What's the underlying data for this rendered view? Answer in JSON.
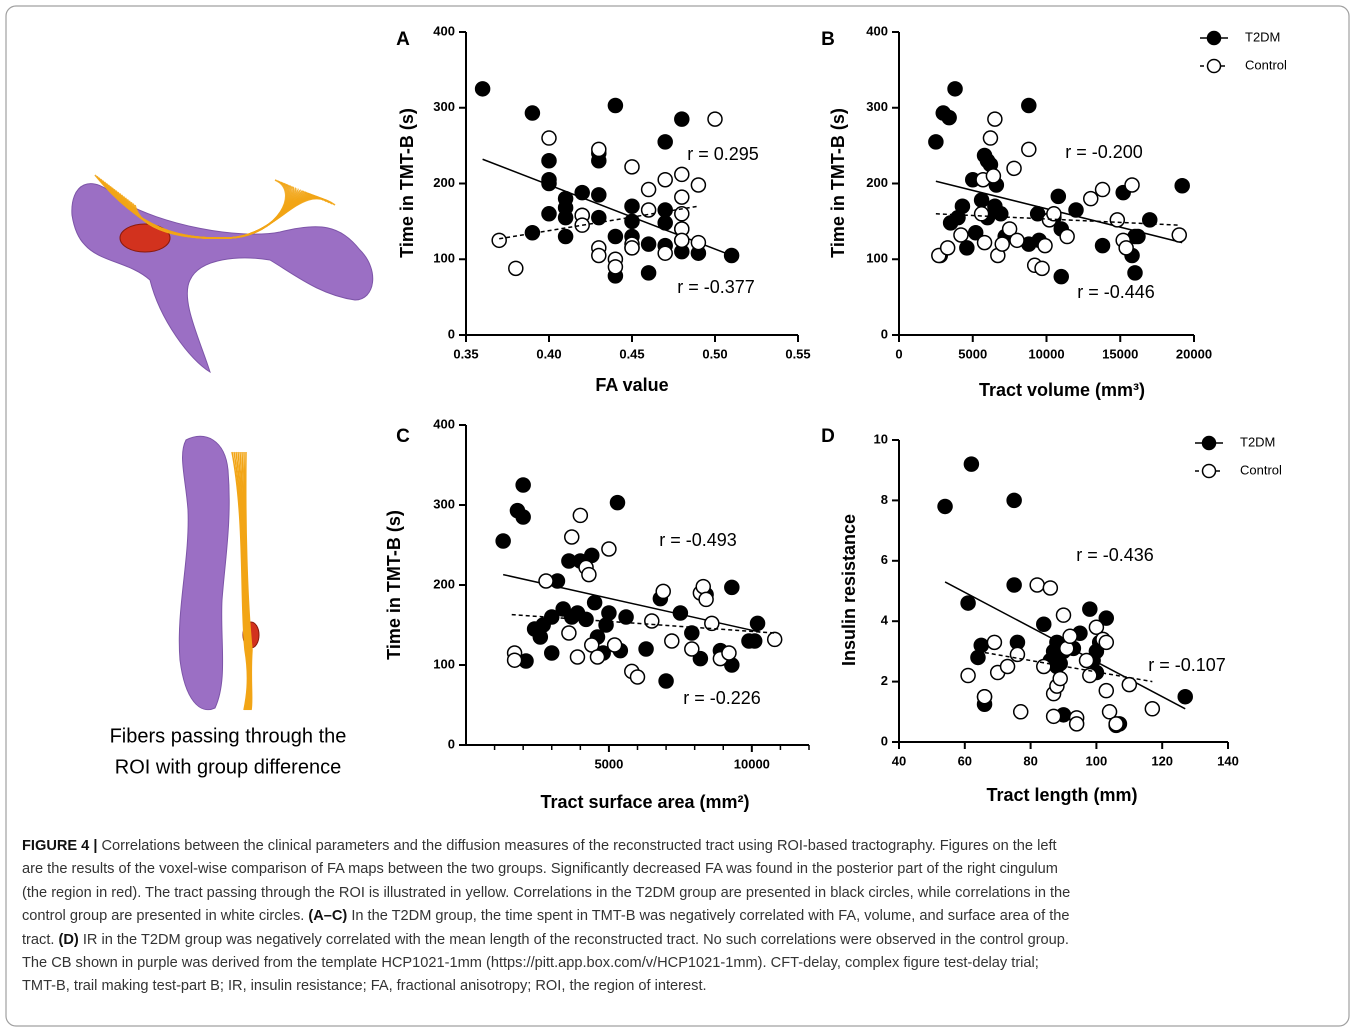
{
  "chart_data": [
    {
      "type": "scatter",
      "panel": "A",
      "x_label": "FA value",
      "y_label": "Time in TMT-B (s)",
      "xlim": [
        0.35,
        0.55
      ],
      "ylim": [
        0,
        400
      ],
      "xticks": [
        0.35,
        {
          "value": 0.4,
          "label": "0.40"
        },
        0.45,
        {
          "value": 0.5,
          "label": "0.50"
        },
        0.55
      ],
      "yticks": [
        0,
        100,
        200,
        300,
        400
      ],
      "series": [
        {
          "name": "T2DM",
          "color": "#000000",
          "line_style": "solid",
          "x": [
            0.36,
            0.39,
            0.39,
            0.4,
            0.4,
            0.4,
            0.4,
            0.41,
            0.41,
            0.41,
            0.41,
            0.42,
            0.42,
            0.43,
            0.43,
            0.43,
            0.43,
            0.44,
            0.44,
            0.44,
            0.45,
            0.45,
            0.45,
            0.45,
            0.46,
            0.46,
            0.47,
            0.47,
            0.47,
            0.47,
            0.48,
            0.48,
            0.48,
            0.48,
            0.49,
            0.51
          ],
          "values": [
            325,
            293,
            135,
            230,
            205,
            200,
            160,
            180,
            168,
            155,
            130,
            188,
            158,
            240,
            230,
            185,
            155,
            303,
            130,
            78,
            170,
            150,
            130,
            115,
            120,
            82,
            255,
            165,
            148,
            118,
            285,
            140,
            125,
            110,
            108,
            105
          ],
          "fit": {
            "x": [
              0.36,
              0.51
            ],
            "y": [
              232,
              105
            ]
          }
        },
        {
          "name": "Control",
          "color": "#ffffff",
          "line_style": "dashed",
          "x": [
            0.37,
            0.38,
            0.4,
            0.42,
            0.42,
            0.43,
            0.43,
            0.43,
            0.44,
            0.44,
            0.45,
            0.45,
            0.45,
            0.46,
            0.46,
            0.47,
            0.47,
            0.48,
            0.48,
            0.48,
            0.48,
            0.48,
            0.49,
            0.49,
            0.5
          ],
          "values": [
            125,
            88,
            260,
            158,
            145,
            245,
            115,
            105,
            100,
            90,
            222,
            120,
            115,
            192,
            165,
            205,
            108,
            212,
            182,
            160,
            140,
            125,
            198,
            122,
            285
          ],
          "fit": {
            "x": [
              0.37,
              0.49
            ],
            "y": [
              127,
              170
            ]
          }
        }
      ],
      "annotations": [
        "r = 0.295",
        "r = -0.377"
      ],
      "legend": null
    },
    {
      "type": "scatter",
      "panel": "B",
      "x_label": "Tract volume (mm³)",
      "y_label": "Time in TMT-B (s)",
      "xlim": [
        0,
        20000
      ],
      "ylim": [
        0,
        400
      ],
      "xticks": [
        0,
        5000,
        10000,
        15000,
        20000
      ],
      "yticks": [
        0,
        100,
        200,
        300,
        400
      ],
      "series": [
        {
          "name": "T2DM",
          "color": "#000000",
          "line_style": "solid",
          "x": [
            2500,
            2800,
            3000,
            3400,
            3800,
            3500,
            4000,
            4300,
            4600,
            5000,
            5200,
            5600,
            5800,
            6000,
            6000,
            6200,
            6500,
            6600,
            6900,
            7200,
            8800,
            8800,
            9400,
            9500,
            10500,
            10800,
            11000,
            11000,
            12000,
            13800,
            15200,
            15800,
            16000,
            16000,
            16200,
            17000,
            19200
          ],
          "values": [
            255,
            105,
            293,
            287,
            325,
            148,
            155,
            170,
            115,
            205,
            135,
            178,
            237,
            230,
            155,
            225,
            170,
            198,
            160,
            130,
            303,
            120,
            160,
            125,
            155,
            183,
            77,
            140,
            165,
            118,
            188,
            105,
            130,
            82,
            130,
            152,
            197
          ],
          "fit": {
            "x": [
              2500,
              19200
            ],
            "y": [
              203,
              122
            ]
          }
        },
        {
          "name": "Control",
          "color": "#ffffff",
          "line_style": "dashed",
          "x": [
            2700,
            3300,
            4200,
            5600,
            5700,
            5800,
            6200,
            6500,
            6400,
            6700,
            7000,
            7500,
            7800,
            8000,
            8800,
            9200,
            9700,
            9900,
            10200,
            10500,
            11400,
            13000,
            13800,
            14800,
            15200,
            15400,
            15800,
            19000
          ],
          "values": [
            105,
            115,
            132,
            160,
            205,
            122,
            260,
            285,
            210,
            105,
            120,
            140,
            220,
            125,
            245,
            92,
            88,
            118,
            152,
            160,
            130,
            180,
            192,
            152,
            125,
            115,
            198,
            132
          ],
          "fit": {
            "x": [
              2500,
              19000
            ],
            "y": [
              160,
              145
            ]
          }
        }
      ],
      "annotations": [
        "r = -0.200",
        "r = -0.446"
      ],
      "legend": "upper right"
    },
    {
      "type": "scatter",
      "panel": "C",
      "x_label": "Tract surface area (mm²)",
      "y_label": "Time in TMT-B (s)",
      "xlim": [
        0,
        12000
      ],
      "ylim": [
        0,
        400
      ],
      "xticks": [
        5000,
        10000
      ],
      "minor_xticks": [
        1000,
        2000,
        3000,
        4000,
        6000,
        7000,
        8000,
        9000,
        11000,
        12000
      ],
      "yticks": [
        0,
        100,
        200,
        300,
        400
      ],
      "series": [
        {
          "name": "T2DM",
          "color": "#000000",
          "line_style": "solid",
          "x": [
            1300,
            1800,
            2000,
            2000,
            2100,
            2400,
            2600,
            2700,
            3000,
            3000,
            3200,
            3400,
            3600,
            3700,
            3900,
            4000,
            4200,
            4500,
            4400,
            4600,
            4800,
            4900,
            5000,
            5300,
            5400,
            5600,
            6300,
            6800,
            7000,
            7500,
            7900,
            8200,
            8400,
            8900,
            9300,
            9300,
            9900,
            10100,
            10200
          ],
          "values": [
            255,
            293,
            285,
            325,
            105,
            145,
            135,
            150,
            160,
            115,
            205,
            170,
            230,
            160,
            165,
            230,
            157,
            178,
            237,
            135,
            115,
            150,
            165,
            303,
            118,
            160,
            120,
            183,
            80,
            165,
            140,
            108,
            188,
            118,
            100,
            197,
            130,
            130,
            152
          ],
          "fit": {
            "x": [
              1300,
              10300
            ],
            "y": [
              213,
              141
            ]
          }
        },
        {
          "name": "Control",
          "color": "#ffffff",
          "line_style": "dashed",
          "x": [
            1700,
            1700,
            2800,
            3600,
            3700,
            3900,
            4000,
            4200,
            4300,
            4400,
            4600,
            5000,
            5200,
            5800,
            6000,
            6500,
            6900,
            7200,
            7900,
            8200,
            8300,
            8400,
            8600,
            8900,
            9200,
            10800
          ],
          "values": [
            115,
            106,
            205,
            140,
            260,
            110,
            287,
            222,
            213,
            125,
            110,
            245,
            125,
            92,
            85,
            155,
            192,
            130,
            120,
            190,
            198,
            182,
            152,
            108,
            115,
            132
          ],
          "fit": {
            "x": [
              1600,
              10800
            ],
            "y": [
              163,
              140
            ]
          }
        }
      ],
      "annotations": [
        "r = -0.493",
        "r = -0.226"
      ],
      "legend": null
    },
    {
      "type": "scatter",
      "panel": "D",
      "x_label": "Tract length (mm)",
      "y_label": "Insulin resistance",
      "xlim": [
        40,
        140
      ],
      "ylim": [
        0,
        10
      ],
      "xticks": [
        40,
        60,
        80,
        100,
        120,
        140
      ],
      "yticks": [
        0,
        2,
        4,
        6,
        8,
        10
      ],
      "series": [
        {
          "name": "T2DM",
          "color": "#000000",
          "line_style": "solid",
          "x": [
            54,
            61,
            62,
            64,
            65,
            66,
            66,
            75,
            75,
            76,
            84,
            86,
            87,
            88,
            88,
            89,
            90,
            90,
            93,
            95,
            98,
            99,
            100,
            100,
            101,
            103,
            106,
            107,
            127
          ],
          "values": [
            7.8,
            4.6,
            9.2,
            2.8,
            3.2,
            1.5,
            1.25,
            5.2,
            8.0,
            3.3,
            3.9,
            2.7,
            3.0,
            3.3,
            2.5,
            2.6,
            3.0,
            0.9,
            3.1,
            3.6,
            4.4,
            2.7,
            3.0,
            2.3,
            3.3,
            4.1,
            0.55,
            0.6,
            1.5
          ],
          "fit": {
            "x": [
              54,
              127
            ],
            "y": [
              5.3,
              1.1
            ]
          }
        },
        {
          "name": "Control",
          "color": "#ffffff",
          "line_style": "dashed",
          "x": [
            61,
            66,
            69,
            70,
            73,
            76,
            77,
            82,
            84,
            86,
            87,
            87,
            88,
            89,
            90,
            91,
            92,
            94,
            94,
            97,
            98,
            100,
            102,
            103,
            103,
            104,
            106,
            110,
            117
          ],
          "values": [
            2.2,
            1.5,
            3.3,
            2.3,
            2.5,
            2.9,
            1.0,
            5.2,
            2.5,
            5.1,
            0.85,
            1.6,
            1.85,
            2.1,
            4.2,
            3.1,
            3.5,
            0.8,
            0.6,
            2.7,
            2.2,
            3.8,
            3.4,
            3.3,
            1.7,
            1.0,
            0.6,
            1.9,
            1.1
          ],
          "fit": {
            "x": [
              64,
              117
            ],
            "y": [
              3.0,
              2.0
            ]
          }
        }
      ],
      "annotations": [
        "r = -0.436",
        "r = -0.107"
      ],
      "legend": "upper right"
    }
  ],
  "illustration": {
    "caption_lines": [
      "Fibers passing through the",
      "ROI with group difference"
    ]
  },
  "caption": {
    "lines": [
      [
        {
          "text": "FIGURE 4 |",
          "bold": true
        },
        {
          "text": " Correlations between the clinical parameters and the diffusion measures of the reconstructed tract using ROI-based tractography. Figures on the left"
        }
      ],
      [
        {
          "text": "are the results of the voxel-wise comparison of FA maps between the two groups. Significantly decreased FA was found in the posterior part of the right cingulum"
        }
      ],
      [
        {
          "text": "(the region in red). The tract passing through the ROI is illustrated in yellow. Correlations in the T2DM group are presented in black circles, while correlations in the"
        }
      ],
      [
        {
          "text": "control group are presented in white circles. "
        },
        {
          "text": "(A–C)",
          "bold": true
        },
        {
          "text": " In the T2DM group, the time spent in TMT-B was negatively correlated with FA, volume, and surface area of the"
        }
      ],
      [
        {
          "text": "tract. "
        },
        {
          "text": "(D)",
          "bold": true
        },
        {
          "text": " IR in the T2DM group was negatively correlated with the mean length of the reconstructed tract. No such correlations were observed in the control group."
        }
      ],
      [
        {
          "text": "The CB shown in purple was derived from the template HCP1021-1mm (https://pitt.app.box.com/v/HCP1021-1mm). CFT-delay, complex figure test-delay trial;"
        }
      ],
      [
        {
          "text": "TMT-B, trail making test-part B; IR, insulin resistance; FA, fractional anisotropy; ROI, the region of interest."
        }
      ]
    ]
  }
}
